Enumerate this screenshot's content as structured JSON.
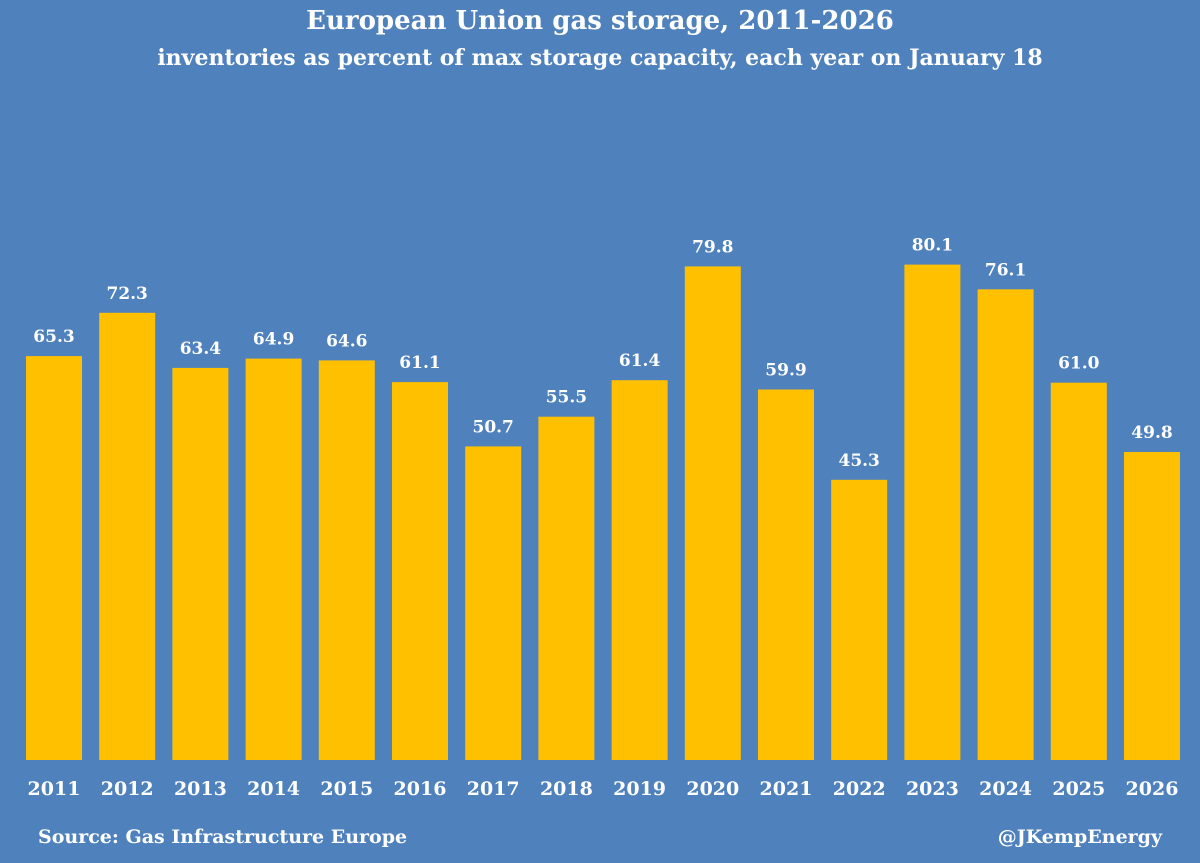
{
  "chart_data": {
    "type": "bar",
    "title": "European Union gas storage, 2011-2026",
    "subtitle": "inventories as percent of  max storage capacity, each year on January 18",
    "categories": [
      "2011",
      "2012",
      "2013",
      "2014",
      "2015",
      "2016",
      "2017",
      "2018",
      "2019",
      "2020",
      "2021",
      "2022",
      "2023",
      "2024",
      "2025",
      "2026"
    ],
    "values": [
      65.3,
      72.3,
      63.4,
      64.9,
      64.6,
      61.1,
      50.7,
      55.5,
      61.4,
      79.8,
      59.9,
      45.3,
      80.1,
      76.1,
      61.0,
      49.8
    ],
    "value_labels": [
      "65.3",
      "72.3",
      "63.4",
      "64.9",
      "64.6",
      "61.1",
      "50.7",
      "55.5",
      "61.4",
      "79.8",
      "59.9",
      "45.3",
      "80.1",
      "76.1",
      "61.0",
      "49.8"
    ],
    "xlabel": "",
    "ylabel": "",
    "ylim": [
      0,
      100
    ],
    "grid": false,
    "bar_color": "#ffc000",
    "background_color": "#4f81bd"
  },
  "footer": {
    "source": "Source: Gas Infrastructure Europe",
    "credit": "@JKempEnergy"
  }
}
